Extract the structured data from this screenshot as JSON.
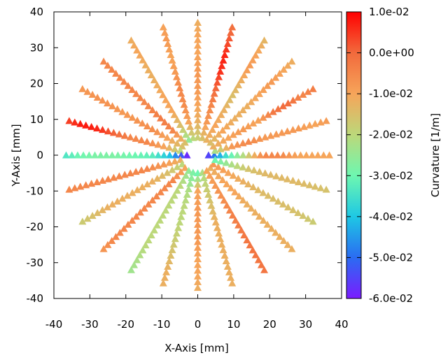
{
  "chart_data": {
    "type": "scatter",
    "marker": "triangle",
    "title": "",
    "xlabel": "X-Axis [mm]",
    "ylabel": "Y-Axis [mm]",
    "xlim": [
      -40,
      40
    ],
    "ylim": [
      -40,
      40
    ],
    "xticks": [
      -40,
      -30,
      -20,
      -10,
      0,
      10,
      20,
      30,
      40
    ],
    "yticks": [
      -40,
      -30,
      -20,
      -10,
      0,
      10,
      20,
      30,
      40
    ],
    "xtick_labels": [
      "-40",
      "-30",
      "-20",
      "-10",
      "0",
      "10",
      "20",
      "30",
      "40"
    ],
    "ytick_labels": [
      "-40",
      "-30",
      "-20",
      "-10",
      "0",
      "10",
      "20",
      "30",
      "40"
    ],
    "grid": false,
    "colorbar": {
      "label": "Curvature [1/m]",
      "range": [
        -0.06,
        0.01
      ],
      "ticks": [
        0.01,
        0.0,
        -0.01,
        -0.02,
        -0.03,
        -0.04,
        -0.05,
        -0.06
      ],
      "tick_labels": [
        "1.0e-02",
        "0.0e+00",
        "-1.0e-02",
        "-2.0e-02",
        "-3.0e-02",
        "-4.0e-02",
        "-5.0e-02",
        "-6.0e-02"
      ],
      "colormap": "rainbow"
    },
    "spokes": [
      {
        "name": "spoke-0deg",
        "angle_deg": 0,
        "r_start": 3,
        "r_end": 38,
        "curvature": [
          -0.055,
          -0.035,
          -0.02,
          -0.005,
          -0.005,
          -0.01,
          -0.01,
          -0.01
        ]
      },
      {
        "name": "spoke-15deg",
        "angle_deg": 15,
        "r_start": 5,
        "r_end": 38,
        "curvature": [
          -0.022,
          -0.008,
          -0.005,
          -0.008,
          -0.008,
          -0.008,
          -0.01,
          -0.008
        ]
      },
      {
        "name": "spoke-30deg",
        "angle_deg": 30,
        "r_start": 5,
        "r_end": 38,
        "curvature": [
          -0.012,
          -0.01,
          -0.008,
          -0.01,
          -0.003,
          0.0,
          -0.005,
          -0.003
        ]
      },
      {
        "name": "spoke-45deg",
        "angle_deg": 45,
        "r_start": 5,
        "r_end": 38,
        "curvature": [
          -0.015,
          -0.01,
          -0.012,
          -0.012,
          -0.01,
          -0.008,
          -0.01,
          -0.012
        ]
      },
      {
        "name": "spoke-60deg",
        "angle_deg": 60,
        "r_start": 5,
        "r_end": 38,
        "curvature": [
          -0.012,
          -0.01,
          -0.012,
          -0.015,
          -0.012,
          -0.008,
          -0.01,
          -0.014
        ]
      },
      {
        "name": "spoke-75deg",
        "angle_deg": 75,
        "r_start": 5,
        "r_end": 38,
        "curvature": [
          -0.015,
          -0.008,
          -0.005,
          0.0,
          0.005,
          0.007,
          0.002,
          -0.002
        ]
      },
      {
        "name": "spoke-90deg",
        "angle_deg": 90,
        "r_start": 5,
        "r_end": 38,
        "curvature": [
          -0.018,
          -0.012,
          -0.01,
          -0.008,
          -0.008,
          -0.01,
          -0.01,
          -0.012
        ]
      },
      {
        "name": "spoke-105deg",
        "angle_deg": 105,
        "r_start": 5,
        "r_end": 38,
        "curvature": [
          -0.02,
          -0.01,
          -0.006,
          -0.005,
          -0.008,
          -0.01,
          -0.008,
          -0.01
        ]
      },
      {
        "name": "spoke-120deg",
        "angle_deg": 120,
        "r_start": 5,
        "r_end": 38,
        "curvature": [
          -0.025,
          -0.015,
          -0.01,
          -0.01,
          -0.012,
          -0.012,
          -0.01,
          -0.012
        ]
      },
      {
        "name": "spoke-135deg",
        "angle_deg": 135,
        "r_start": 5,
        "r_end": 38,
        "curvature": [
          -0.015,
          -0.005,
          -0.003,
          -0.005,
          -0.005,
          -0.005,
          -0.005,
          -0.005
        ]
      },
      {
        "name": "spoke-150deg",
        "angle_deg": 150,
        "r_start": 5,
        "r_end": 38,
        "curvature": [
          -0.015,
          -0.01,
          -0.006,
          -0.007,
          -0.008,
          -0.007,
          -0.007,
          -0.008
        ]
      },
      {
        "name": "spoke-165deg",
        "angle_deg": 165,
        "r_start": 5,
        "r_end": 38,
        "curvature": [
          -0.02,
          -0.01,
          -0.005,
          -0.005,
          0.0,
          0.006,
          0.008,
          0.003
        ]
      },
      {
        "name": "spoke-180deg",
        "angle_deg": 180,
        "r_start": 3,
        "r_end": 38,
        "curvature": [
          -0.058,
          -0.04,
          -0.032,
          -0.03,
          -0.028,
          -0.028,
          -0.03,
          -0.035
        ]
      },
      {
        "name": "spoke-195deg",
        "angle_deg": 195,
        "r_start": 5,
        "r_end": 38,
        "curvature": [
          -0.012,
          -0.008,
          -0.005,
          -0.005,
          -0.005,
          -0.005,
          -0.005,
          -0.005
        ]
      },
      {
        "name": "spoke-210deg",
        "angle_deg": 210,
        "r_start": 5,
        "r_end": 38,
        "curvature": [
          -0.02,
          -0.015,
          -0.012,
          -0.012,
          -0.012,
          -0.012,
          -0.015,
          -0.018
        ]
      },
      {
        "name": "spoke-225deg",
        "angle_deg": 225,
        "r_start": 5,
        "r_end": 38,
        "curvature": [
          -0.01,
          -0.005,
          -0.005,
          -0.005,
          -0.005,
          -0.005,
          -0.005,
          -0.008
        ]
      },
      {
        "name": "spoke-240deg",
        "angle_deg": 240,
        "r_start": 5,
        "r_end": 38,
        "curvature": [
          -0.025,
          -0.02,
          -0.02,
          -0.02,
          -0.02,
          -0.02,
          -0.022,
          -0.024
        ]
      },
      {
        "name": "spoke-255deg",
        "angle_deg": 255,
        "r_start": 5,
        "r_end": 38,
        "curvature": [
          -0.028,
          -0.022,
          -0.02,
          -0.02,
          -0.018,
          -0.015,
          -0.012,
          -0.012
        ]
      },
      {
        "name": "spoke-270deg",
        "angle_deg": 270,
        "r_start": 5,
        "r_end": 38,
        "curvature": [
          -0.03,
          -0.01,
          -0.008,
          -0.008,
          -0.008,
          -0.01,
          -0.01,
          -0.012
        ]
      },
      {
        "name": "spoke-285deg",
        "angle_deg": 285,
        "r_start": 5,
        "r_end": 38,
        "curvature": [
          -0.022,
          -0.018,
          -0.015,
          -0.012,
          -0.012,
          -0.012,
          -0.012,
          -0.012
        ]
      },
      {
        "name": "spoke-300deg",
        "angle_deg": 300,
        "r_start": 5,
        "r_end": 38,
        "curvature": [
          -0.01,
          -0.008,
          -0.006,
          -0.004,
          -0.003,
          -0.002,
          -0.002,
          -0.002
        ]
      },
      {
        "name": "spoke-315deg",
        "angle_deg": 315,
        "r_start": 5,
        "r_end": 38,
        "curvature": [
          -0.012,
          -0.01,
          -0.01,
          -0.012,
          -0.012,
          -0.012,
          -0.012,
          -0.012
        ]
      },
      {
        "name": "spoke-330deg",
        "angle_deg": 330,
        "r_start": 5,
        "r_end": 38,
        "curvature": [
          -0.008,
          -0.01,
          -0.012,
          -0.014,
          -0.015,
          -0.015,
          -0.016,
          -0.018
        ]
      },
      {
        "name": "spoke-345deg",
        "angle_deg": 345,
        "r_start": 5,
        "r_end": 38,
        "curvature": [
          -0.03,
          -0.022,
          -0.016,
          -0.014,
          -0.014,
          -0.014,
          -0.015,
          -0.016
        ]
      }
    ]
  }
}
